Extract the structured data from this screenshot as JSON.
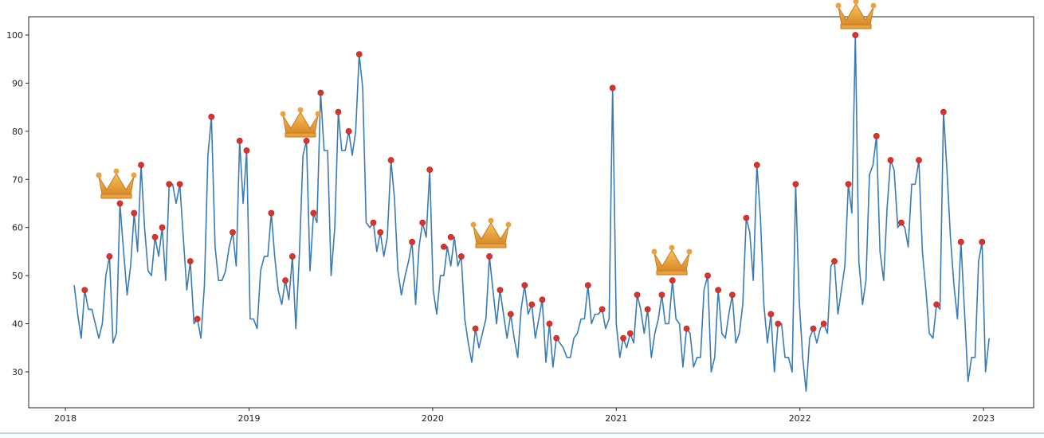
{
  "chart_data": {
    "type": "line",
    "xlim": [
      2017.8,
      2023.273
    ],
    "xticks": [
      2018,
      2019,
      2020,
      2021,
      2022,
      2023
    ],
    "ylim": [
      22.55,
      103.8
    ],
    "yticks": [
      30,
      40,
      50,
      60,
      70,
      80,
      90,
      100
    ],
    "grid": false,
    "series": [
      {
        "type": "line",
        "color": "#3b7bb3",
        "x": [
          2018.048,
          2018.067,
          2018.086,
          2018.105,
          2018.125,
          2018.144,
          2018.163,
          2018.182,
          2018.201,
          2018.22,
          2018.24,
          2018.259,
          2018.278,
          2018.297,
          2018.317,
          2018.336,
          2018.355,
          2018.374,
          2018.393,
          2018.412,
          2018.431,
          2018.45,
          2018.469,
          2018.488,
          2018.508,
          2018.527,
          2018.546,
          2018.565,
          2018.584,
          2018.603,
          2018.623,
          2018.642,
          2018.661,
          2018.68,
          2018.7,
          2018.719,
          2018.738,
          2018.757,
          2018.776,
          2018.795,
          2018.815,
          2018.834,
          2018.853,
          2018.872,
          2018.892,
          2018.911,
          2018.93,
          2018.949,
          2018.968,
          2018.987,
          2019.006,
          2019.025,
          2019.044,
          2019.063,
          2019.083,
          2019.102,
          2019.121,
          2019.14,
          2019.159,
          2019.178,
          2019.198,
          2019.217,
          2019.236,
          2019.255,
          2019.275,
          2019.294,
          2019.313,
          2019.332,
          2019.351,
          2019.37,
          2019.39,
          2019.409,
          2019.428,
          2019.447,
          2019.467,
          2019.486,
          2019.505,
          2019.524,
          2019.543,
          2019.562,
          2019.581,
          2019.6,
          2019.619,
          2019.638,
          2019.658,
          2019.677,
          2019.696,
          2019.715,
          2019.734,
          2019.753,
          2019.773,
          2019.792,
          2019.811,
          2019.83,
          2019.85,
          2019.869,
          2019.888,
          2019.907,
          2019.926,
          2019.945,
          2019.965,
          2019.984,
          2020.003,
          2020.022,
          2020.042,
          2020.061,
          2020.08,
          2020.099,
          2020.118,
          2020.137,
          2020.156,
          2020.175,
          2020.194,
          2020.213,
          2020.233,
          2020.252,
          2020.271,
          2020.29,
          2020.309,
          2020.328,
          2020.348,
          2020.367,
          2020.386,
          2020.405,
          2020.425,
          2020.444,
          2020.463,
          2020.482,
          2020.501,
          2020.52,
          2020.54,
          2020.559,
          2020.578,
          2020.597,
          2020.617,
          2020.636,
          2020.655,
          2020.674,
          2020.693,
          2020.712,
          2020.731,
          2020.75,
          2020.769,
          2020.788,
          2020.808,
          2020.827,
          2020.846,
          2020.865,
          2020.884,
          2020.903,
          2020.923,
          2020.942,
          2020.961,
          2020.98,
          2021.0,
          2021.019,
          2021.038,
          2021.057,
          2021.076,
          2021.095,
          2021.114,
          2021.133,
          2021.152,
          2021.171,
          2021.191,
          2021.21,
          2021.229,
          2021.248,
          2021.267,
          2021.286,
          2021.306,
          2021.325,
          2021.344,
          2021.363,
          2021.383,
          2021.402,
          2021.421,
          2021.44,
          2021.459,
          2021.478,
          2021.498,
          2021.517,
          2021.536,
          2021.555,
          2021.575,
          2021.594,
          2021.613,
          2021.632,
          2021.651,
          2021.67,
          2021.689,
          2021.708,
          2021.727,
          2021.746,
          2021.766,
          2021.785,
          2021.804,
          2021.823,
          2021.842,
          2021.861,
          2021.881,
          2021.9,
          2021.919,
          2021.938,
          2021.958,
          2021.977,
          2021.996,
          2022.015,
          2022.034,
          2022.053,
          2022.073,
          2022.092,
          2022.111,
          2022.13,
          2022.15,
          2022.169,
          2022.188,
          2022.207,
          2022.226,
          2022.245,
          2022.264,
          2022.283,
          2022.302,
          2022.321,
          2022.341,
          2022.36,
          2022.379,
          2022.398,
          2022.417,
          2022.436,
          2022.456,
          2022.475,
          2022.494,
          2022.513,
          2022.533,
          2022.552,
          2022.571,
          2022.59,
          2022.609,
          2022.628,
          2022.648,
          2022.667,
          2022.686,
          2022.705,
          2022.725,
          2022.744,
          2022.763,
          2022.782,
          2022.801,
          2022.82,
          2022.839,
          2022.858,
          2022.877,
          2022.896,
          2022.916,
          2022.935,
          2022.954,
          2022.973,
          2022.992,
          2023.011,
          2023.031
        ],
        "values": [
          48,
          42,
          37,
          47,
          43,
          43,
          40,
          37,
          40,
          50,
          54,
          36,
          38,
          65,
          55,
          46,
          52,
          63,
          55,
          73,
          60,
          51,
          50,
          58,
          54,
          60,
          49,
          69,
          69,
          65,
          69,
          58,
          47,
          53,
          40,
          41,
          37,
          48,
          75,
          83,
          56,
          49,
          49,
          51,
          56,
          59,
          52,
          78,
          65,
          76,
          41,
          41,
          39,
          51,
          54,
          54,
          63,
          54,
          47,
          44,
          49,
          45,
          54,
          39,
          55,
          75,
          78,
          51,
          63,
          61,
          88,
          76,
          76,
          50,
          60,
          84,
          76,
          76,
          80,
          75,
          80,
          96,
          89,
          61,
          60,
          61,
          55,
          59,
          54,
          58,
          74,
          66,
          51,
          46,
          50,
          53,
          57,
          44,
          56,
          61,
          58,
          72,
          47,
          42,
          50,
          50,
          56,
          52,
          58,
          52,
          54,
          41,
          36,
          32,
          39,
          35,
          38,
          41,
          54,
          47,
          40,
          47,
          42,
          37,
          42,
          37,
          33,
          43,
          48,
          42,
          44,
          37,
          41,
          45,
          32,
          40,
          31,
          37,
          36,
          35,
          33,
          33,
          37,
          38,
          41,
          41,
          48,
          40,
          42,
          42,
          43,
          39,
          41,
          89,
          40,
          33,
          37,
          35,
          38,
          36,
          46,
          43,
          38,
          43,
          33,
          38,
          41,
          46,
          40,
          40,
          49,
          41,
          40,
          31,
          39,
          38,
          31,
          33,
          33,
          47,
          50,
          30,
          33,
          47,
          38,
          37,
          42,
          46,
          36,
          38,
          44,
          62,
          59,
          49,
          73,
          62,
          44,
          36,
          42,
          30,
          40,
          40,
          33,
          33,
          30,
          69,
          45,
          33,
          26,
          37,
          39,
          36,
          39,
          40,
          38,
          52,
          53,
          42,
          47,
          52,
          69,
          63,
          100,
          53,
          44,
          49,
          71,
          73,
          79,
          55,
          49,
          64,
          74,
          72,
          60,
          61,
          60,
          56,
          69,
          69,
          74,
          55,
          47,
          38,
          37,
          44,
          43,
          84,
          72,
          58,
          48,
          41,
          57,
          43,
          28,
          33,
          33,
          53,
          57,
          30,
          37
        ]
      },
      {
        "type": "scatter",
        "color": "#d9342b",
        "x": [
          2018.105,
          2018.24,
          2018.297,
          2018.374,
          2018.412,
          2018.488,
          2018.527,
          2018.565,
          2018.623,
          2018.68,
          2018.719,
          2018.795,
          2018.911,
          2018.949,
          2018.987,
          2019.121,
          2019.198,
          2019.236,
          2019.313,
          2019.351,
          2019.39,
          2019.486,
          2019.543,
          2019.6,
          2019.677,
          2019.715,
          2019.773,
          2019.888,
          2019.945,
          2019.984,
          2020.061,
          2020.099,
          2020.156,
          2020.233,
          2020.309,
          2020.367,
          2020.425,
          2020.501,
          2020.54,
          2020.597,
          2020.636,
          2020.674,
          2020.846,
          2020.923,
          2020.98,
          2021.038,
          2021.076,
          2021.114,
          2021.171,
          2021.248,
          2021.306,
          2021.383,
          2021.498,
          2021.555,
          2021.632,
          2021.708,
          2021.766,
          2021.842,
          2021.881,
          2021.977,
          2022.073,
          2022.13,
          2022.188,
          2022.264,
          2022.302,
          2022.417,
          2022.494,
          2022.552,
          2022.648,
          2022.744,
          2022.782,
          2022.877,
          2022.992
        ],
        "values": [
          47,
          54,
          65,
          63,
          73,
          58,
          60,
          69,
          69,
          53,
          41,
          83,
          59,
          78,
          76,
          63,
          49,
          54,
          78,
          63,
          88,
          84,
          80,
          96,
          61,
          59,
          74,
          57,
          61,
          72,
          56,
          58,
          54,
          39,
          54,
          47,
          42,
          48,
          44,
          45,
          40,
          37,
          48,
          43,
          89,
          37,
          38,
          46,
          43,
          46,
          49,
          39,
          50,
          47,
          46,
          62,
          73,
          42,
          40,
          69,
          39,
          40,
          53,
          69,
          100,
          79,
          74,
          61,
          74,
          44,
          84,
          57,
          57
        ]
      }
    ]
  }
}
